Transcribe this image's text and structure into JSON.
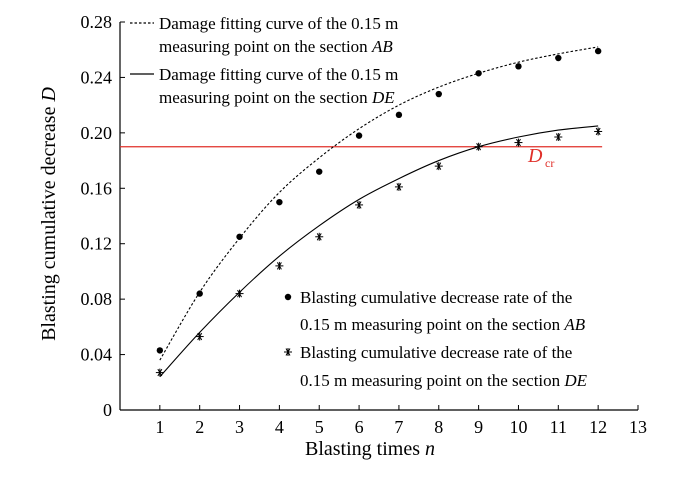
{
  "chart_data": {
    "type": "scatter",
    "xlabel": "Blasting times",
    "xlabel_var": "n",
    "ylabel": "Blasting cumulative decrease",
    "ylabel_var": "D",
    "xlim": [
      0,
      13
    ],
    "ylim": [
      0,
      0.28
    ],
    "x_ticks": [
      1,
      2,
      3,
      4,
      5,
      6,
      7,
      8,
      9,
      10,
      11,
      12,
      13
    ],
    "y_ticks": [
      0,
      0.04,
      0.08,
      0.12,
      0.16,
      0.2,
      0.24,
      0.28
    ],
    "y_tick_labels": [
      "0",
      "0.04",
      "0.08",
      "0.12",
      "0.16",
      "0.20",
      "0.24",
      "0.28"
    ],
    "grid": false,
    "threshold": {
      "label_main": "D",
      "label_sub": "cr",
      "value": 0.19,
      "color": "#e0302a"
    },
    "series": [
      {
        "name": "Blasting cumulative decrease rate of the 0.15 m measuring point on the section AB",
        "marker": "dot",
        "x": [
          1,
          2,
          3,
          4,
          5,
          6,
          7,
          8,
          9,
          10,
          11,
          12
        ],
        "y": [
          0.043,
          0.084,
          0.125,
          0.15,
          0.172,
          0.198,
          0.213,
          0.228,
          0.243,
          0.248,
          0.254,
          0.259
        ]
      },
      {
        "name": "Blasting cumulative decrease rate of the 0.15 m measuring point on the section DE",
        "marker": "asterisk",
        "x": [
          1,
          2,
          3,
          4,
          5,
          6,
          7,
          8,
          9,
          10,
          11,
          12
        ],
        "y": [
          0.027,
          0.053,
          0.084,
          0.104,
          0.125,
          0.148,
          0.161,
          0.176,
          0.19,
          0.193,
          0.197,
          0.201
        ]
      }
    ],
    "fits": [
      {
        "name": "Damage fitting curve of the 0.15 m measuring point on the section AB",
        "style": "dashed",
        "x": [
          1,
          2,
          3,
          4,
          5,
          6,
          7,
          8,
          9,
          10,
          11,
          12
        ],
        "y": [
          0.036,
          0.085,
          0.124,
          0.157,
          0.182,
          0.203,
          0.22,
          0.233,
          0.243,
          0.251,
          0.257,
          0.262
        ]
      },
      {
        "name": "Damage fitting curve of the 0.15 m measuring point on the section DE",
        "style": "solid",
        "x": [
          1,
          2,
          3,
          4,
          5,
          6,
          7,
          8,
          9,
          10,
          11,
          12
        ],
        "y": [
          0.024,
          0.056,
          0.085,
          0.111,
          0.133,
          0.152,
          0.167,
          0.18,
          0.19,
          0.197,
          0.202,
          0.205
        ]
      }
    ],
    "legend": {
      "lines": [
        {
          "line1": "Damage fitting curve of the 0.15 m",
          "line2": "measuring point on the section",
          "section": "AB"
        },
        {
          "line1": "Damage fitting curve of the 0.15 m",
          "line2": "measuring point on the section",
          "section": "DE"
        }
      ],
      "markers": [
        {
          "line1": "Blasting cumulative decrease rate of the",
          "line2": "0.15 m measuring point on the section",
          "section": "AB"
        },
        {
          "line1": "Blasting cumulative decrease rate of the",
          "line2": "0.15 m measuring point on the section",
          "section": "DE"
        }
      ]
    }
  }
}
